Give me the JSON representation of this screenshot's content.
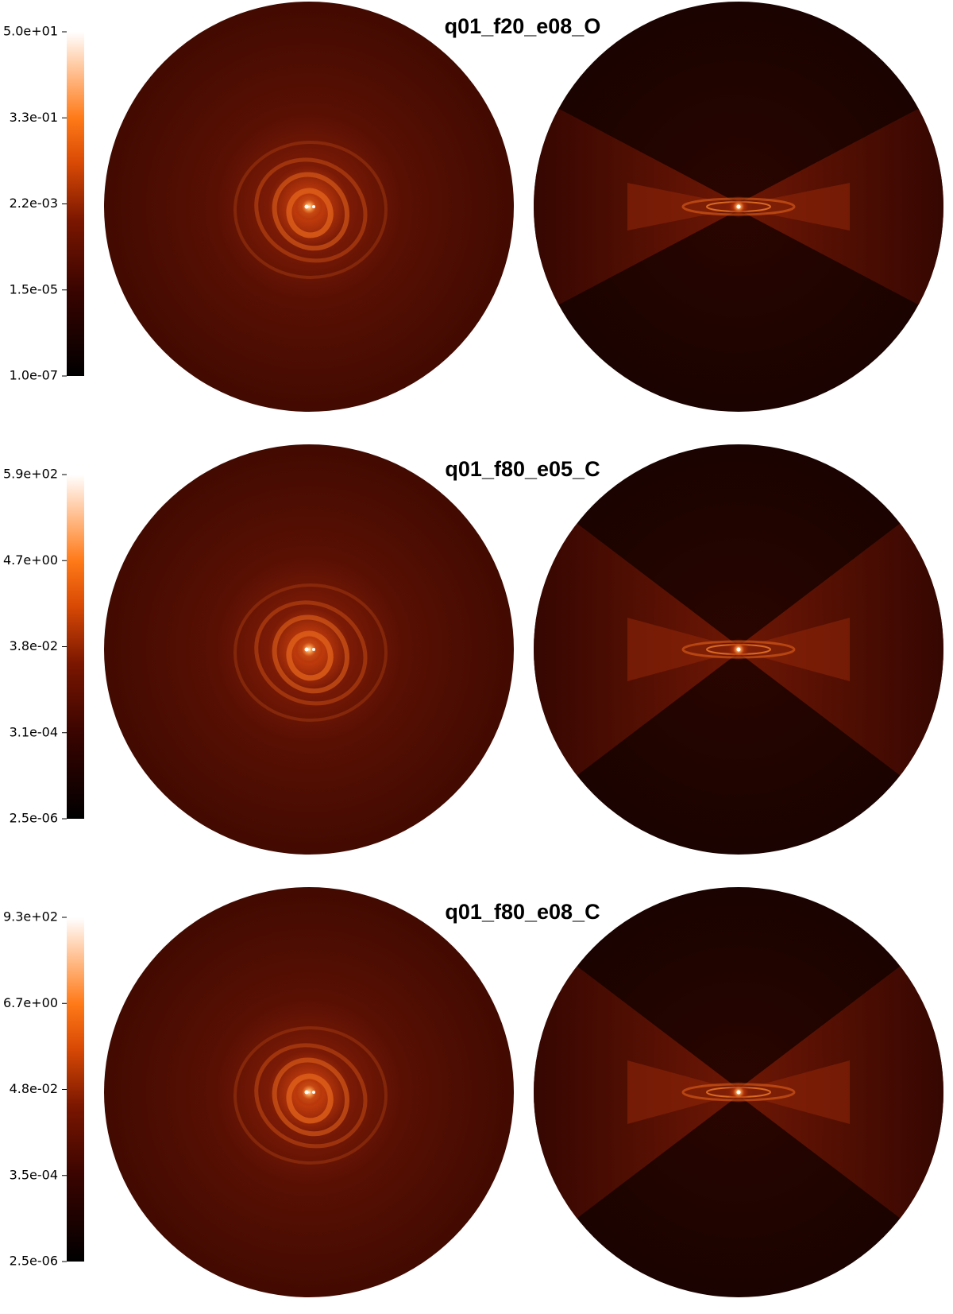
{
  "panels": [
    {
      "title": "q01_f20_e08_O",
      "colorbar": {
        "labels": [
          "5.0e+01",
          "3.3e-01",
          "2.2e-03",
          "1.5e-05",
          "1.0e-07"
        ]
      }
    },
    {
      "title": "q01_f80_e05_C",
      "colorbar": {
        "labels": [
          "5.9e+02",
          "4.7e+00",
          "3.8e-02",
          "3.1e-04",
          "2.5e-06"
        ]
      }
    },
    {
      "title": "q01_f80_e08_C",
      "colorbar": {
        "labels": [
          "9.3e+02",
          "6.7e+00",
          "4.8e-02",
          "3.5e-04",
          "2.5e-06"
        ]
      }
    }
  ]
}
